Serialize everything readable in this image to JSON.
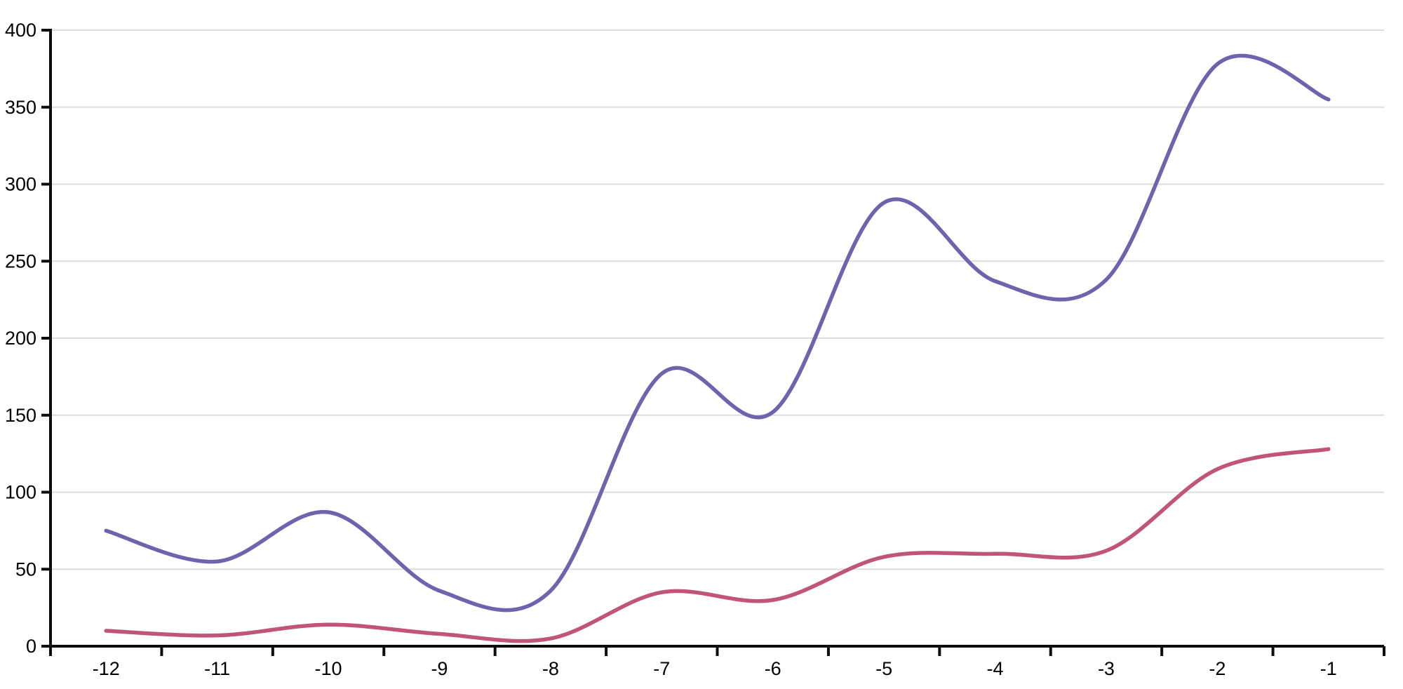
{
  "chart_data": {
    "type": "line",
    "title": "",
    "xlabel": "",
    "ylabel": "",
    "categories": [
      "-12",
      "-11",
      "-10",
      "-9",
      "-8",
      "-7",
      "-6",
      "-5",
      "-4",
      "-3",
      "-2",
      "-1"
    ],
    "series": [
      {
        "name": "purple-series",
        "color": "#7063ad",
        "values": [
          75,
          55,
          87,
          36,
          36,
          177,
          152,
          288,
          237,
          238,
          378,
          355
        ]
      },
      {
        "name": "pink-series",
        "color": "#c05577",
        "values": [
          10,
          7,
          14,
          8,
          5,
          35,
          30,
          58,
          60,
          62,
          115,
          128
        ]
      }
    ],
    "y_axis": {
      "min": 0,
      "max": 400,
      "tick_step": 50,
      "tick_labels": [
        "0",
        "50",
        "100",
        "150",
        "200",
        "250",
        "300",
        "350",
        "400"
      ]
    },
    "x_axis": {
      "tick_labels": [
        "-12",
        "-11",
        "-10",
        "-9",
        "-8",
        "-7",
        "-6",
        "-5",
        "-4",
        "-3",
        "-2",
        "-1"
      ]
    },
    "grid": true,
    "legend": false,
    "curve": "smooth-catmull-rom",
    "colors": {
      "background": "#ffffff",
      "axis": "#0c0c0c",
      "gridline": "#dedede",
      "label": "#000000"
    }
  }
}
